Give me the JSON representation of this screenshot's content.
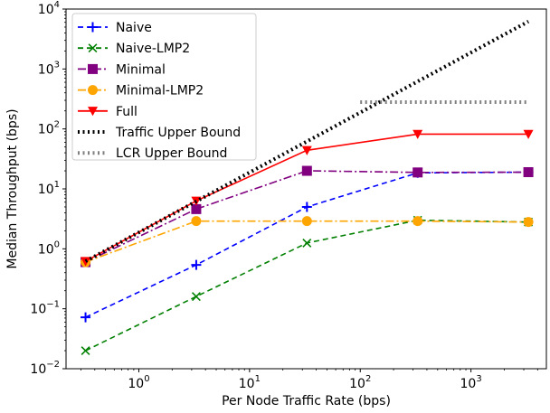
{
  "chart_data": {
    "type": "line",
    "xlabel": "Per Node Traffic Rate (bps)",
    "ylabel": "Median Throughput (bps)",
    "xscale": "log",
    "yscale": "log",
    "xlim": [
      0.22,
      4800
    ],
    "ylim": [
      0.01,
      10000
    ],
    "x_ticks": [
      {
        "value": 1,
        "base": "10",
        "exp": "0"
      },
      {
        "value": 10,
        "base": "10",
        "exp": "1"
      },
      {
        "value": 100,
        "base": "10",
        "exp": "2"
      },
      {
        "value": 1000,
        "base": "10",
        "exp": "3"
      }
    ],
    "y_ticks": [
      {
        "value": 0.01,
        "base": "10",
        "exp": "−2"
      },
      {
        "value": 0.1,
        "base": "10",
        "exp": "−1"
      },
      {
        "value": 1,
        "base": "10",
        "exp": "0"
      },
      {
        "value": 10,
        "base": "10",
        "exp": "1"
      },
      {
        "value": 100,
        "base": "10",
        "exp": "2"
      },
      {
        "value": 1000,
        "base": "10",
        "exp": "3"
      },
      {
        "value": 10000,
        "base": "10",
        "exp": "4"
      }
    ],
    "legend_position": "top-left",
    "grid": false,
    "series": [
      {
        "name": "Naive",
        "color": "#0000ff",
        "dash": "6,4",
        "marker": "plus",
        "x": [
          0.33,
          3.3,
          33,
          330,
          3300
        ],
        "y": [
          0.072,
          0.54,
          5.0,
          18.5,
          19.0
        ]
      },
      {
        "name": "Naive-LMP2",
        "color": "#008000",
        "dash": "6,4",
        "marker": "x",
        "x": [
          0.33,
          3.3,
          33,
          330,
          3300
        ],
        "y": [
          0.02,
          0.16,
          1.25,
          3.0,
          2.8
        ]
      },
      {
        "name": "Minimal",
        "color": "#800080",
        "dash": "9,3,2,3",
        "marker": "square",
        "x": [
          0.33,
          3.3,
          33,
          330,
          3300
        ],
        "y": [
          0.6,
          4.6,
          20.0,
          18.8,
          19.0
        ]
      },
      {
        "name": "Minimal-LMP2",
        "color": "#ffa500",
        "dash": "9,3,2,3",
        "marker": "circle",
        "x": [
          0.33,
          3.3,
          33,
          330,
          3300
        ],
        "y": [
          0.6,
          2.9,
          2.9,
          2.9,
          2.8
        ]
      },
      {
        "name": "Full",
        "color": "#ff0000",
        "dash": "",
        "marker": "triangle-down",
        "x": [
          0.33,
          3.3,
          33,
          330,
          3300
        ],
        "y": [
          0.62,
          6.3,
          44,
          82,
          82
        ]
      },
      {
        "name": "Traffic Upper Bound",
        "color": "#000000",
        "dash": "2,3.5",
        "marker": "none",
        "width": 4,
        "x": [
          0.33,
          3300
        ],
        "y": [
          0.62,
          6200
        ]
      },
      {
        "name": "LCR Upper Bound",
        "color": "#808080",
        "dash": "2,3.5",
        "marker": "none",
        "width": 4,
        "x": [
          100,
          3300
        ],
        "y": [
          280,
          280
        ]
      }
    ]
  }
}
